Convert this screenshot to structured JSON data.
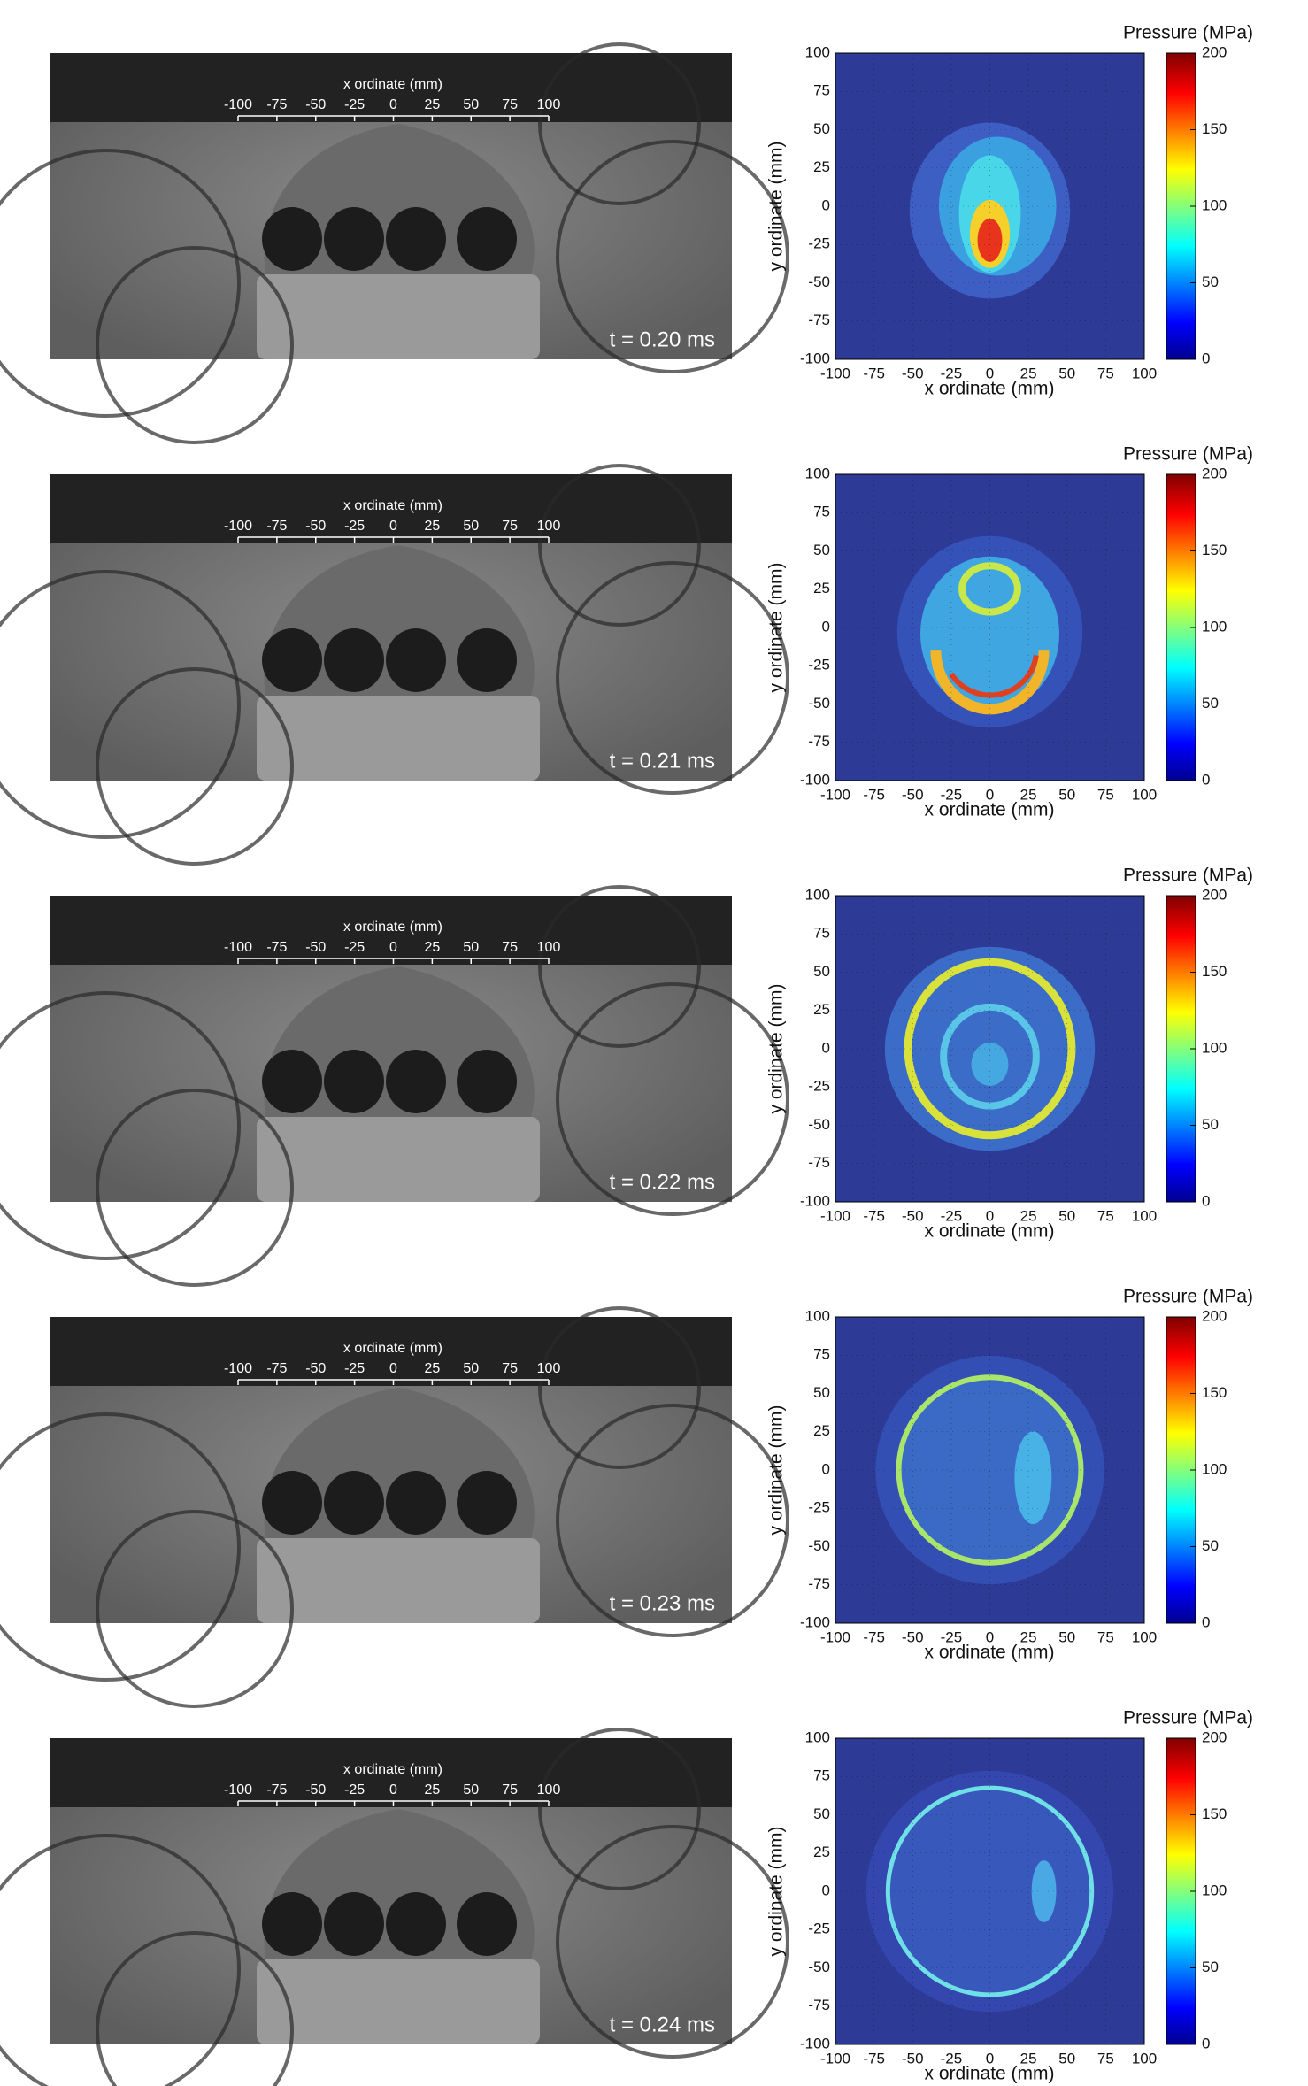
{
  "axes": {
    "photo_axis_label": "x ordinate (mm)",
    "photo_ticks": [
      -100,
      -75,
      -50,
      -25,
      0,
      25,
      50,
      75,
      100
    ],
    "map_xlabel": "x ordinate (mm)",
    "map_ylabel": "y ordinate (mm)",
    "map_ticks": [
      -100,
      -75,
      -50,
      -25,
      0,
      25,
      50,
      75,
      100
    ],
    "colorbar_label": "Pressure (MPa)",
    "colorbar_ticks": [
      0,
      50,
      100,
      150,
      200
    ]
  },
  "panels": [
    {
      "time": "t = 0.20 ms"
    },
    {
      "time": "t = 0.21 ms"
    },
    {
      "time": "t = 0.22 ms"
    },
    {
      "time": "t = 0.23 ms"
    },
    {
      "time": "t = 0.24 ms"
    }
  ]
}
